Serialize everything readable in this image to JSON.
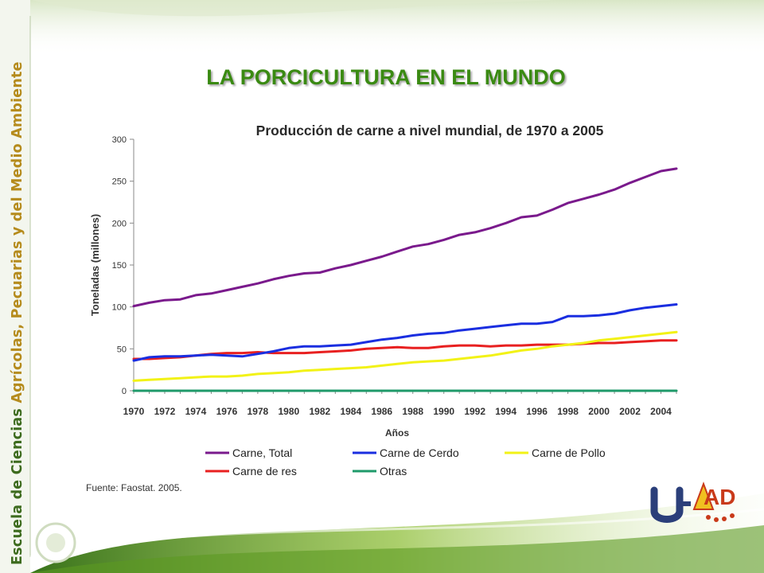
{
  "slide": {
    "side_text_a": "Escuela de Ciencias ",
    "side_text_b": "Agrícolas, Pecuarias y del Medio Ambiente",
    "title": "LA PORCICULTURA EN EL MUNDO",
    "source": "Fuente: Faostat. 2005.",
    "logo_text": "AD"
  },
  "chart_data": {
    "type": "line",
    "title": "Producción de carne a nivel mundial, de 1970 a 2005",
    "xlabel": "Años",
    "ylabel": "Toneladas (millones)",
    "ylim": [
      0,
      300
    ],
    "yticks": [
      "0",
      "50",
      "100",
      "150",
      "200",
      "250",
      "300"
    ],
    "xticks": [
      "1970",
      "1972",
      "1974",
      "1976",
      "1978",
      "1980",
      "1982",
      "1984",
      "1986",
      "1988",
      "1990",
      "1992",
      "1994",
      "1996",
      "1998",
      "2000",
      "2002",
      "2004"
    ],
    "x": [
      1970,
      1971,
      1972,
      1973,
      1974,
      1975,
      1976,
      1977,
      1978,
      1979,
      1980,
      1981,
      1982,
      1983,
      1984,
      1985,
      1986,
      1987,
      1988,
      1989,
      1990,
      1991,
      1992,
      1993,
      1994,
      1995,
      1996,
      1997,
      1998,
      1999,
      2000,
      2001,
      2002,
      2003,
      2004,
      2005
    ],
    "legend": "bottom",
    "series": [
      {
        "name": "Carne, Total",
        "color": "#7a1a8c",
        "values": [
          101,
          105,
          108,
          109,
          114,
          116,
          120,
          124,
          128,
          133,
          137,
          140,
          141,
          146,
          150,
          155,
          160,
          166,
          172,
          175,
          180,
          186,
          189,
          194,
          200,
          207,
          209,
          216,
          224,
          229,
          234,
          240,
          248,
          255,
          262,
          265
        ]
      },
      {
        "name": "Carne de Cerdo",
        "color": "#1a2ee0",
        "values": [
          36,
          40,
          41,
          41,
          42,
          43,
          42,
          41,
          44,
          47,
          51,
          53,
          53,
          54,
          55,
          58,
          61,
          63,
          66,
          68,
          69,
          72,
          74,
          76,
          78,
          80,
          80,
          82,
          89,
          89,
          90,
          92,
          96,
          99,
          101,
          103
        ]
      },
      {
        "name": "Carne de Pollo",
        "color": "#f2f216",
        "values": [
          12,
          13,
          14,
          15,
          16,
          17,
          17,
          18,
          20,
          21,
          22,
          24,
          25,
          26,
          27,
          28,
          30,
          32,
          34,
          35,
          36,
          38,
          40,
          42,
          45,
          48,
          50,
          53,
          55,
          57,
          60,
          62,
          64,
          66,
          68,
          70
        ]
      },
      {
        "name": "Carne de res",
        "color": "#e82020",
        "values": [
          38,
          38,
          39,
          40,
          42,
          44,
          45,
          45,
          46,
          45,
          45,
          45,
          46,
          47,
          48,
          50,
          51,
          52,
          51,
          51,
          53,
          54,
          54,
          53,
          54,
          54,
          55,
          55,
          55,
          56,
          57,
          57,
          58,
          59,
          60,
          60
        ]
      },
      {
        "name": "Otras",
        "color": "#1f9a6a",
        "values": [
          0,
          0,
          0,
          0,
          0,
          0,
          0,
          0,
          0,
          0,
          0,
          0,
          0,
          0,
          0,
          0,
          0,
          0,
          0,
          0,
          0,
          0,
          0,
          0,
          0,
          0,
          0,
          0,
          0,
          0,
          0,
          0,
          0,
          0,
          0,
          0
        ]
      }
    ]
  }
}
